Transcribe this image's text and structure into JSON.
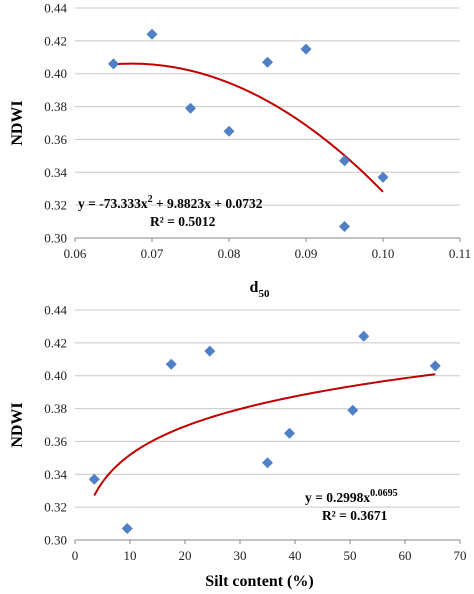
{
  "chart_data": [
    {
      "type": "scatter",
      "xlabel": "d",
      "xlabel_sub": "50",
      "ylabel": "NDWI",
      "xlim": [
        0.06,
        0.11
      ],
      "ylim": [
        0.3,
        0.44
      ],
      "xticks": [
        "0.06",
        "0.07",
        "0.08",
        "0.09",
        "0.10",
        "0.11"
      ],
      "yticks": [
        "0.30",
        "0.32",
        "0.34",
        "0.36",
        "0.38",
        "0.40",
        "0.42",
        "0.44"
      ],
      "grid": "horizontal",
      "points": [
        {
          "x": 0.065,
          "y": 0.406
        },
        {
          "x": 0.07,
          "y": 0.424
        },
        {
          "x": 0.075,
          "y": 0.379
        },
        {
          "x": 0.08,
          "y": 0.365
        },
        {
          "x": 0.085,
          "y": 0.407
        },
        {
          "x": 0.09,
          "y": 0.415
        },
        {
          "x": 0.095,
          "y": 0.347
        },
        {
          "x": 0.095,
          "y": 0.307
        },
        {
          "x": 0.1,
          "y": 0.337
        }
      ],
      "trendline": {
        "kind": "polynomial",
        "coefficients": [
          -73.333,
          9.8823,
          0.0732
        ],
        "x_range": [
          0.065,
          0.1
        ],
        "color": "#c00000"
      },
      "equation_parts": [
        "y = -73.333x",
        "2",
        " + 9.8823x + 0.0732"
      ],
      "r2_label": "R² = 0.5012",
      "marker_color": "#4f7fc4"
    },
    {
      "type": "scatter",
      "xlabel": "Silt content (%)",
      "ylabel": "NDWI",
      "xlim": [
        0,
        70
      ],
      "ylim": [
        0.3,
        0.44
      ],
      "xticks": [
        "0",
        "10",
        "20",
        "30",
        "40",
        "50",
        "60",
        "70"
      ],
      "yticks": [
        "0.30",
        "0.32",
        "0.34",
        "0.36",
        "0.38",
        "0.40",
        "0.42",
        "0.44"
      ],
      "grid": "horizontal",
      "points": [
        {
          "x": 3.5,
          "y": 0.337
        },
        {
          "x": 9.5,
          "y": 0.307
        },
        {
          "x": 17.5,
          "y": 0.407
        },
        {
          "x": 24.5,
          "y": 0.415
        },
        {
          "x": 35.0,
          "y": 0.347
        },
        {
          "x": 39.0,
          "y": 0.365
        },
        {
          "x": 50.5,
          "y": 0.379
        },
        {
          "x": 52.5,
          "y": 0.424
        },
        {
          "x": 65.5,
          "y": 0.406
        }
      ],
      "trendline": {
        "kind": "power",
        "a": 0.2998,
        "b": 0.0695,
        "x_range": [
          3.5,
          65.5
        ],
        "color": "#c00000"
      },
      "equation_parts": [
        "y = 0.2998x",
        "0.0695",
        ""
      ],
      "r2_label": "R² = 0.3671",
      "marker_color": "#4f7fc4"
    }
  ]
}
